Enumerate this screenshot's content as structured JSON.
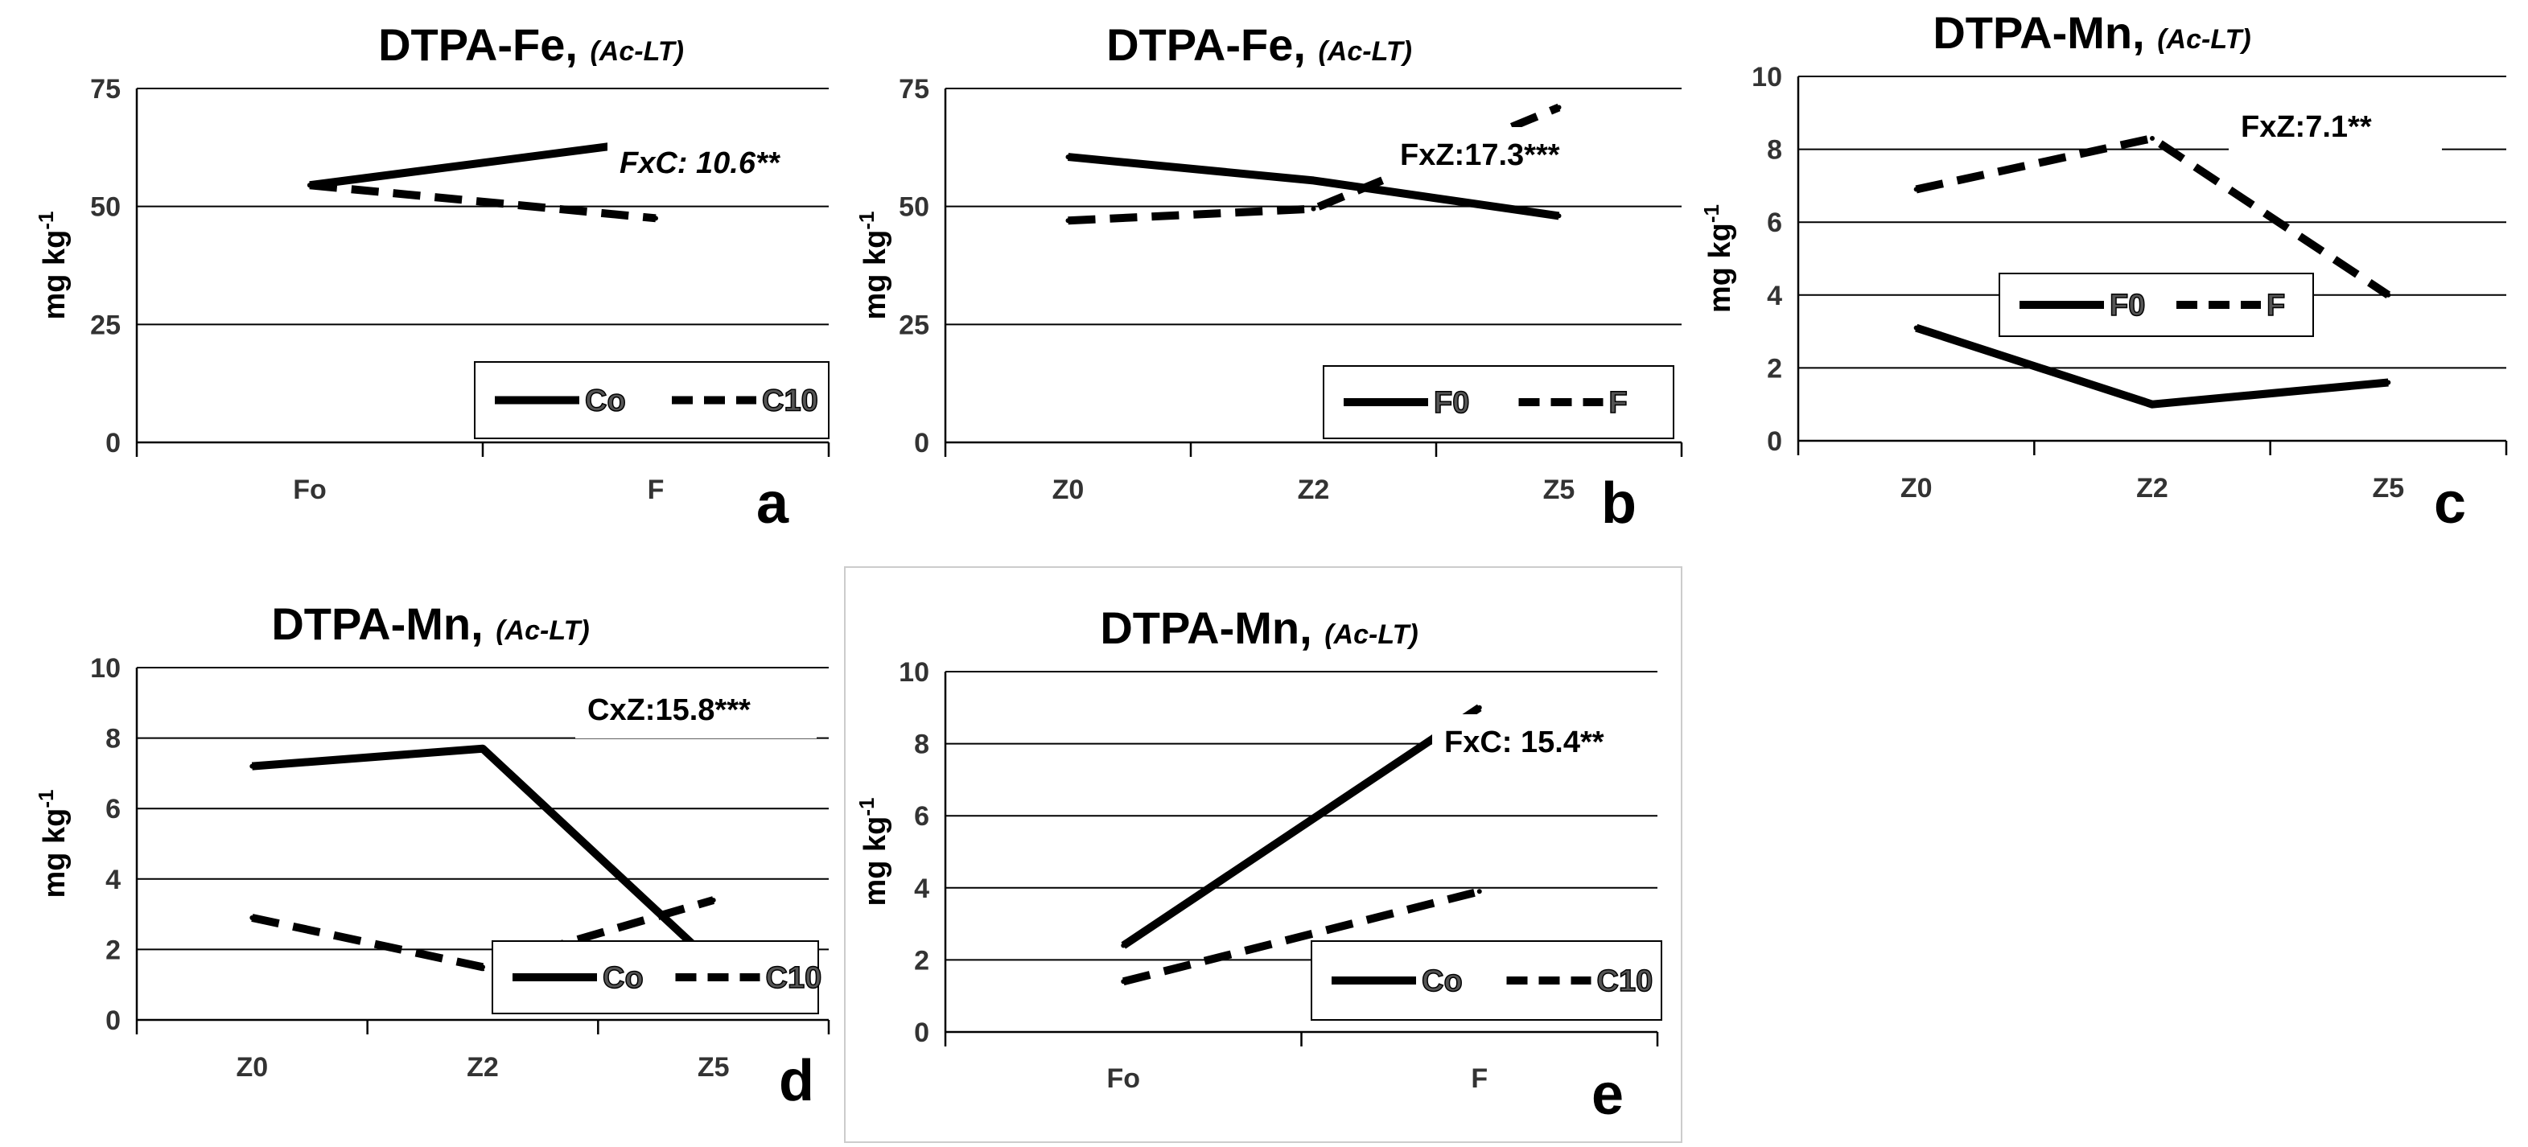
{
  "chart_data": [
    {
      "id": "a",
      "type": "line",
      "title": "DTPA-Fe,",
      "title_sub": "(Ac-LT)",
      "ylabel": "mg kg",
      "ylabel_sup": "-1",
      "ylim": [
        0,
        75
      ],
      "yticks": [
        0,
        25,
        50,
        75
      ],
      "categories": [
        "Fo",
        "F"
      ],
      "series": [
        {
          "name": "Co",
          "style": "solid",
          "values": [
            54.5,
            64
          ]
        },
        {
          "name": "C10",
          "style": "dashed",
          "values": [
            54.5,
            47.5
          ]
        }
      ],
      "annotation": "FxC: 10.6**",
      "annotation_italic": true,
      "letter": "a"
    },
    {
      "id": "b",
      "type": "line",
      "title": "DTPA-Fe,",
      "title_sub": "(Ac-LT)",
      "ylabel": "mg kg",
      "ylabel_sup": "-1",
      "ylim": [
        0,
        75
      ],
      "yticks": [
        0,
        25,
        50,
        75
      ],
      "categories": [
        "Z0",
        "Z2",
        "Z5"
      ],
      "series": [
        {
          "name": "F0",
          "style": "solid",
          "values": [
            60.5,
            55.5,
            48
          ]
        },
        {
          "name": "F",
          "style": "dashed",
          "values": [
            47,
            49.5,
            71
          ]
        }
      ],
      "annotation": "FxZ:17.3***",
      "annotation_italic": false,
      "letter": "b"
    },
    {
      "id": "c",
      "type": "line",
      "title": "DTPA-Mn,",
      "title_sub": "(Ac-LT)",
      "ylabel": "mg kg",
      "ylabel_sup": "-1",
      "ylim": [
        0,
        10
      ],
      "yticks": [
        0,
        2,
        4,
        6,
        8,
        10
      ],
      "categories": [
        "Z0",
        "Z2",
        "Z5"
      ],
      "series": [
        {
          "name": "F0",
          "style": "solid",
          "values": [
            3.1,
            1.0,
            1.6
          ]
        },
        {
          "name": "F",
          "style": "dashed",
          "values": [
            6.9,
            8.3,
            4.0
          ]
        }
      ],
      "annotation": "FxZ:7.1**",
      "annotation_italic": false,
      "letter": "c"
    },
    {
      "id": "d",
      "type": "line",
      "title": "DTPA-Mn,",
      "title_sub": "(Ac-LT)",
      "ylabel": "mg kg",
      "ylabel_sup": "-1",
      "ylim": [
        0,
        10
      ],
      "yticks": [
        0,
        2,
        4,
        6,
        8,
        10
      ],
      "categories": [
        "Z0",
        "Z2",
        "Z5"
      ],
      "series": [
        {
          "name": "Co",
          "style": "solid",
          "values": [
            7.2,
            7.7,
            1.6
          ]
        },
        {
          "name": "C10",
          "style": "dashed",
          "values": [
            2.9,
            1.5,
            3.4
          ]
        }
      ],
      "annotation": "CxZ:15.8***",
      "annotation_italic": false,
      "letter": "d"
    },
    {
      "id": "e",
      "type": "line",
      "title": "DTPA-Mn,",
      "title_sub": "(Ac-LT)",
      "ylabel": "mg kg",
      "ylabel_sup": "-1",
      "ylim": [
        0,
        10
      ],
      "yticks": [
        0,
        2,
        4,
        6,
        8,
        10
      ],
      "categories": [
        "Fo",
        "F"
      ],
      "series": [
        {
          "name": "Co",
          "style": "solid",
          "values": [
            2.4,
            9.0
          ]
        },
        {
          "name": "C10",
          "style": "dashed",
          "values": [
            1.4,
            3.9
          ]
        }
      ],
      "annotation": "FxC: 15.4**",
      "annotation_italic": false,
      "letter": "e"
    }
  ]
}
